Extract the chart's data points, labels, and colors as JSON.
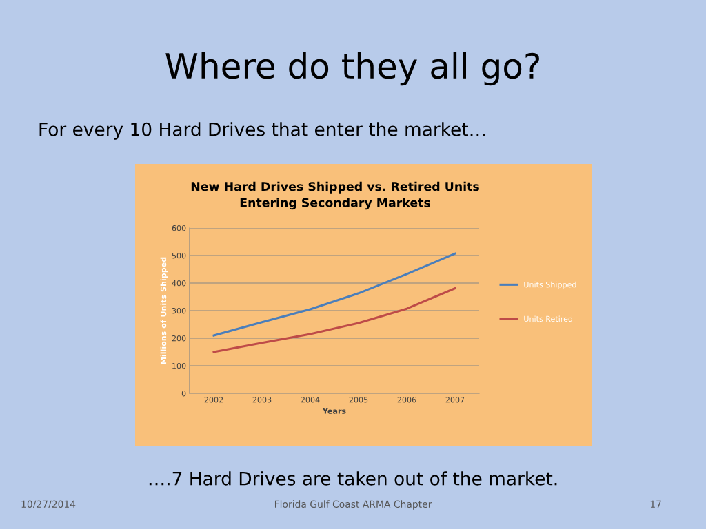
{
  "chart_data": {
    "type": "line",
    "title": "New Hard Drives Shipped vs. Retired Units\nEntering Secondary Markets",
    "xlabel": "Years",
    "ylabel": "Millions of Units Shipped",
    "categories": [
      "2002",
      "2003",
      "2004",
      "2005",
      "2006",
      "2007"
    ],
    "series": [
      {
        "name": "Units Shipped",
        "color": "#4a7ebb",
        "values": [
          210,
          258,
          305,
          363,
          433,
          507
        ]
      },
      {
        "name": "Units Retired",
        "color": "#be4b48",
        "values": [
          150,
          183,
          215,
          255,
          307,
          381
        ]
      }
    ],
    "ylim": [
      0,
      600
    ],
    "yticks": [
      0,
      100,
      200,
      300,
      400,
      500,
      600
    ],
    "grid": "y",
    "legend": "right",
    "marker": "none",
    "line_style": "solid",
    "annotations": [
      "Where do they all go?",
      "For every 10 Hard Drives that enter the market…",
      "….7 Hard Drives are taken out of the market.",
      "10/27/2014",
      "Florida Gulf Coast ARMA Chapter",
      "17"
    ]
  }
}
